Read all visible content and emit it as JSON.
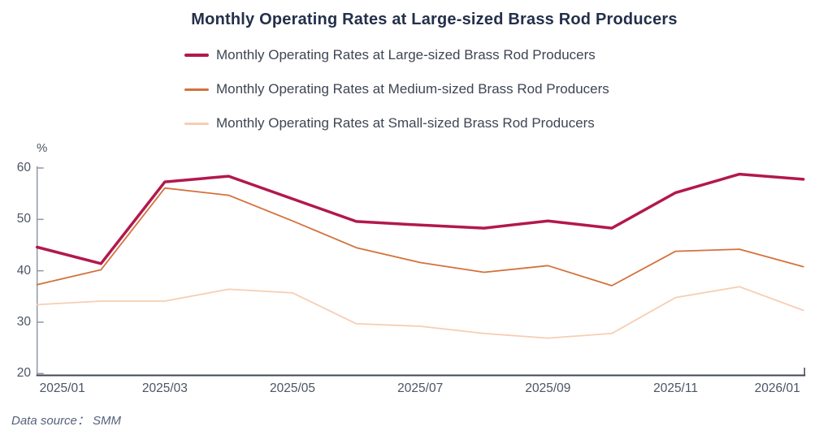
{
  "header": {
    "title": "Monthly Operating Rates at Large-sized Brass Rod Producers"
  },
  "footer": {
    "data_source": "Data source： SMM"
  },
  "chart_data": {
    "type": "line",
    "title": "Monthly Operating Rates at Large-sized Brass Rod Producers",
    "xlabel": "",
    "ylabel": "%",
    "ylim": [
      20,
      60
    ],
    "yticks": [
      60,
      50,
      40,
      30,
      20
    ],
    "grid": false,
    "legend_position": "top",
    "categories": [
      "2025/01",
      "2025/02",
      "2025/03",
      "2025/04",
      "2025/05",
      "2025/06",
      "2025/07",
      "2025/08",
      "2025/09",
      "2025/10",
      "2025/11",
      "2025/12",
      "2026/01"
    ],
    "xtick_labels": [
      "2025/01",
      "2025/03",
      "2025/05",
      "2025/07",
      "2025/09",
      "2025/11",
      "2026/01"
    ],
    "series": [
      {
        "name": "Monthly Operating Rates at Large-sized Brass Rod Producers",
        "short_name": "large-producers",
        "color": "#b2184e",
        "line_width": 3.5,
        "values": [
          44.6,
          41.4,
          57.3,
          58.4,
          54.0,
          49.6,
          48.9,
          48.3,
          49.7,
          48.3,
          55.2,
          58.8,
          57.8
        ]
      },
      {
        "name": "Monthly Operating Rates at Medium-sized Brass Rod Producers",
        "short_name": "medium-producers",
        "color": "#d4713c",
        "line_width": 1.8,
        "values": [
          37.3,
          40.2,
          56.1,
          54.7,
          49.7,
          44.5,
          41.6,
          39.7,
          41.0,
          37.1,
          43.8,
          44.2,
          40.8
        ]
      },
      {
        "name": "Monthly Operating Rates at Small-sized Brass Rod Producers",
        "short_name": "small-producers",
        "color": "#f6ceb3",
        "line_width": 1.8,
        "values": [
          33.4,
          34.1,
          34.1,
          36.4,
          35.7,
          29.7,
          29.2,
          27.8,
          26.9,
          27.8,
          34.8,
          36.9,
          32.3
        ]
      }
    ],
    "axis_colors": {
      "y_axis": "#9097a6",
      "x_axis": "#3f4656"
    }
  }
}
